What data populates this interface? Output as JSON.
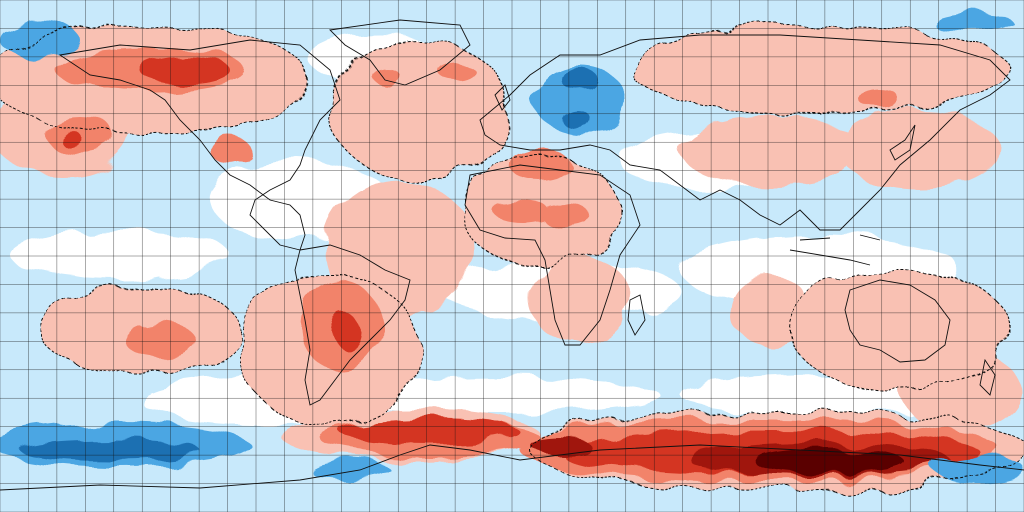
{
  "map": {
    "projection": "equirectangular",
    "extent": {
      "lon": [
        -180,
        180
      ],
      "lat": [
        -90,
        90
      ]
    },
    "graticule_step_degrees": 10,
    "contour_style": "dashed",
    "palette": {
      "cold_3": "#1f6fb2",
      "cold_2": "#4ba6e3",
      "cold_1": "#c8e9fb",
      "neutral": "#ffffff",
      "warm_1": "#f9c1b3",
      "warm_2": "#f2836b",
      "warm_3": "#d43522",
      "warm_4": "#a0160a",
      "warm_5": "#5a0400",
      "coast": "#111111",
      "grid": "#111111"
    },
    "regions": [
      {
        "name": "north-pacific-warm-pool",
        "class": "warm_2",
        "lon": -165,
        "lat": 42
      },
      {
        "name": "alaska-yukon-warm",
        "class": "warm_3",
        "lon": -135,
        "lat": 66
      },
      {
        "name": "central-pacific-cold",
        "class": "cold_1",
        "lon": -150,
        "lat": 10
      },
      {
        "name": "greenland-warm",
        "class": "warm_2",
        "lon": -40,
        "lat": 74
      },
      {
        "name": "north-atlantic-warm",
        "class": "warm_1",
        "lon": -35,
        "lat": 50
      },
      {
        "name": "scandinavia-cold",
        "class": "cold_2",
        "lon": 22,
        "lat": 62
      },
      {
        "name": "sahara-warm",
        "class": "warm_2",
        "lon": 5,
        "lat": 20
      },
      {
        "name": "siberia-warm",
        "class": "warm_1",
        "lon": 100,
        "lat": 62
      },
      {
        "name": "south-america-warm",
        "class": "warm_2",
        "lon": -58,
        "lat": -22
      },
      {
        "name": "australia-warm",
        "class": "warm_1",
        "lon": 135,
        "lat": -25
      },
      {
        "name": "southern-ocean-warm",
        "class": "warm_3",
        "lon": -40,
        "lat": -57
      },
      {
        "name": "antarctic-coast-warm",
        "class": "warm_3",
        "lon": 60,
        "lat": -66
      },
      {
        "name": "east-antarctica-extreme-warm",
        "class": "warm_5",
        "lon": 110,
        "lat": -70
      },
      {
        "name": "ross-amundsen-cold",
        "class": "cold_3",
        "lon": -150,
        "lat": -70
      }
    ]
  }
}
